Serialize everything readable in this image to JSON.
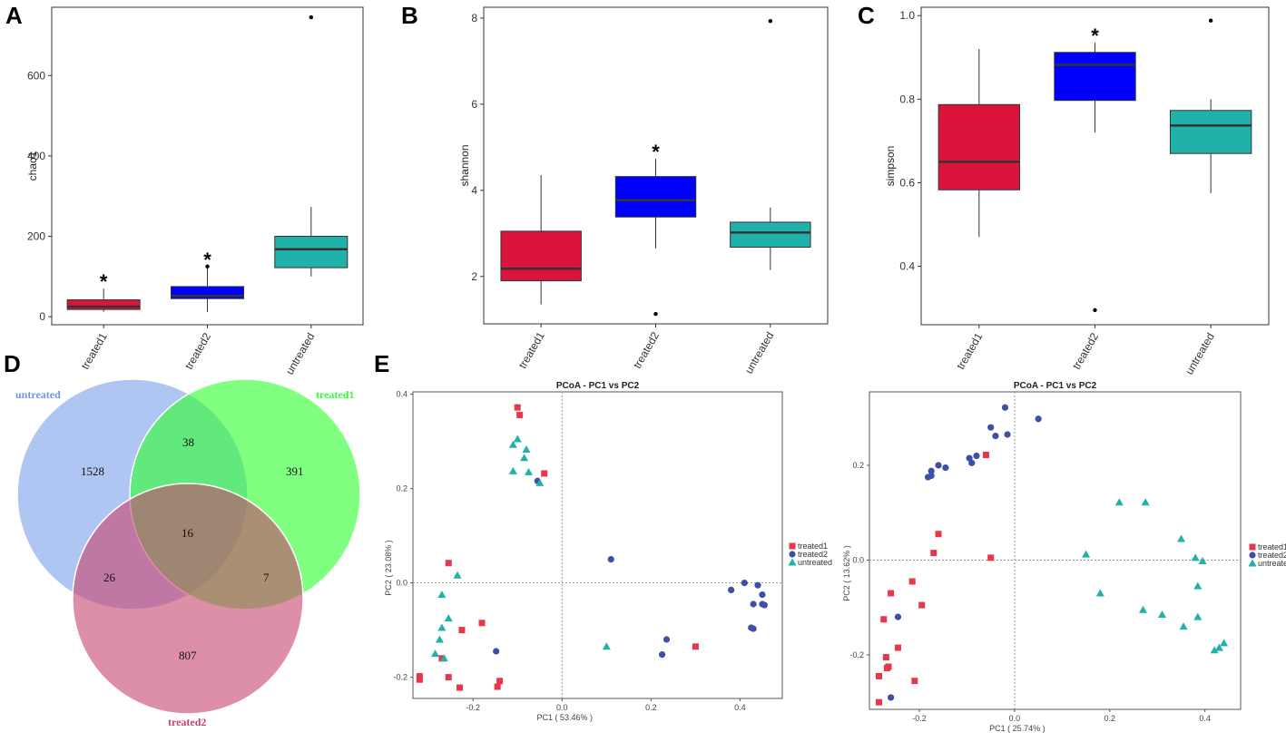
{
  "panel_letters": {
    "A": "A",
    "B": "B",
    "C": "C",
    "D": "D",
    "E": "E"
  },
  "chart_data": [
    {
      "id": "A",
      "type": "boxplot",
      "ylabel": "chao1",
      "ylim": [
        -20,
        770
      ],
      "yticks": [
        0,
        200,
        400,
        600
      ],
      "categories": [
        "treated1",
        "treated2",
        "untreated"
      ],
      "colors": [
        "#dc143c",
        "#0000ff",
        "#20b2aa"
      ],
      "boxes": [
        {
          "whisker_low": 12,
          "q1": 18,
          "median": 25,
          "q3": 42,
          "whisker_high": 70,
          "outliers": [],
          "star": "*"
        },
        {
          "whisker_low": 12,
          "q1": 45,
          "median": 52,
          "q3": 75,
          "whisker_high": 122,
          "outliers": [
            125
          ],
          "star": "*"
        },
        {
          "whisker_low": 100,
          "q1": 122,
          "median": 168,
          "q3": 200,
          "whisker_high": 273,
          "outliers": [
            745
          ],
          "star": ""
        }
      ]
    },
    {
      "id": "B",
      "type": "boxplot",
      "ylabel": "shannon",
      "ylim": [
        0.9,
        8.25
      ],
      "yticks": [
        2,
        4,
        6,
        8
      ],
      "categories": [
        "treated1",
        "treated2",
        "untreated"
      ],
      "colors": [
        "#dc143c",
        "#0000ff",
        "#20b2aa"
      ],
      "boxes": [
        {
          "whisker_low": 1.35,
          "q1": 1.9,
          "median": 2.18,
          "q3": 3.05,
          "whisker_high": 4.35,
          "outliers": [],
          "star": ""
        },
        {
          "whisker_low": 2.65,
          "q1": 3.38,
          "median": 3.77,
          "q3": 4.32,
          "whisker_high": 4.73,
          "outliers": [
            1.13
          ],
          "star": "*"
        },
        {
          "whisker_low": 2.15,
          "q1": 2.68,
          "median": 3.02,
          "q3": 3.26,
          "whisker_high": 3.6,
          "outliers": [
            7.93
          ],
          "star": ""
        }
      ]
    },
    {
      "id": "C",
      "type": "boxplot",
      "ylabel": "simpson",
      "ylim": [
        0.26,
        1.02
      ],
      "yticks": [
        0.4,
        0.6,
        0.8,
        1.0
      ],
      "ytick_labels": [
        "0.4",
        "0.6",
        "0.8",
        "1.0"
      ],
      "categories": [
        "treated1",
        "treated2",
        "untreated"
      ],
      "colors": [
        "#dc143c",
        "#0000ff",
        "#20b2aa"
      ],
      "boxes": [
        {
          "whisker_low": 0.47,
          "q1": 0.583,
          "median": 0.65,
          "q3": 0.787,
          "whisker_high": 0.92,
          "outliers": [],
          "star": ""
        },
        {
          "whisker_low": 0.72,
          "q1": 0.797,
          "median": 0.882,
          "q3": 0.912,
          "whisker_high": 0.935,
          "outliers": [
            0.295
          ],
          "star": "*"
        },
        {
          "whisker_low": 0.575,
          "q1": 0.67,
          "median": 0.737,
          "q3": 0.773,
          "whisker_high": 0.8,
          "outliers": [
            0.988
          ],
          "star": ""
        }
      ]
    },
    {
      "id": "D",
      "type": "venn",
      "sets": [
        {
          "name": "untreated",
          "color": "#6e96e8"
        },
        {
          "name": "treated1",
          "color": "#33ff33"
        },
        {
          "name": "treated2",
          "color": "#c8446e"
        }
      ],
      "counts": {
        "untreated_only": "1528",
        "treated1_only": "391",
        "treated2_only": "807",
        "untreated_treated1": "38",
        "untreated_treated2": "26",
        "treated1_treated2": "7",
        "all": "16"
      }
    },
    {
      "id": "E1",
      "type": "scatter",
      "title": "PCoA - PC1 vs PC2",
      "xlabel": "PC1 ( 53.46% )",
      "ylabel": "PC2 ( 23.08% )",
      "xlim": [
        -0.335,
        0.495
      ],
      "ylim": [
        -0.245,
        0.405
      ],
      "xticks": [
        -0.2,
        0,
        0.2,
        0.4
      ],
      "xtick_labels": [
        "-0.2",
        "0.0",
        "0.2",
        "0.4"
      ],
      "yticks": [
        -0.2,
        0,
        0.2,
        0.4
      ],
      "ytick_labels": [
        "-0.2",
        "0.0",
        "0.2",
        "0.4"
      ],
      "legend": [
        "treated1",
        "treated2",
        "untreated"
      ],
      "series": [
        {
          "name": "treated1",
          "color": "#e8364a",
          "marker": "square",
          "points": [
            [
              -0.1,
              0.372
            ],
            [
              -0.095,
              0.356
            ],
            [
              -0.04,
              0.232
            ],
            [
              -0.255,
              0.042
            ],
            [
              -0.255,
              -0.2
            ],
            [
              -0.23,
              -0.222
            ],
            [
              -0.145,
              -0.22
            ],
            [
              -0.14,
              -0.208
            ],
            [
              -0.225,
              -0.1
            ],
            [
              -0.18,
              -0.085
            ],
            [
              -0.27,
              -0.16
            ],
            [
              -0.32,
              -0.198
            ],
            [
              -0.32,
              -0.205
            ],
            [
              0.3,
              -0.135
            ]
          ]
        },
        {
          "name": "treated2",
          "color": "#3f4fa5",
          "marker": "circle",
          "points": [
            [
              -0.055,
              0.216
            ],
            [
              0.11,
              0.05
            ],
            [
              0.41,
              0.0
            ],
            [
              0.38,
              -0.015
            ],
            [
              0.44,
              -0.005
            ],
            [
              0.45,
              -0.025
            ],
            [
              0.43,
              -0.045
            ],
            [
              0.45,
              -0.045
            ],
            [
              0.455,
              -0.047
            ],
            [
              0.425,
              -0.095
            ],
            [
              0.43,
              -0.097
            ],
            [
              0.235,
              -0.12
            ],
            [
              0.225,
              -0.152
            ],
            [
              -0.148,
              -0.145
            ]
          ]
        },
        {
          "name": "untreated",
          "color": "#20b2aa",
          "marker": "triangle",
          "points": [
            [
              -0.1,
              0.305
            ],
            [
              -0.11,
              0.293
            ],
            [
              -0.08,
              0.283
            ],
            [
              -0.085,
              0.265
            ],
            [
              -0.11,
              0.237
            ],
            [
              -0.075,
              0.235
            ],
            [
              -0.05,
              0.212
            ],
            [
              -0.235,
              0.016
            ],
            [
              -0.27,
              -0.025
            ],
            [
              -0.255,
              -0.075
            ],
            [
              -0.27,
              -0.095
            ],
            [
              -0.275,
              -0.12
            ],
            [
              -0.285,
              -0.15
            ],
            [
              -0.265,
              -0.16
            ],
            [
              0.1,
              -0.135
            ]
          ]
        }
      ]
    },
    {
      "id": "E2",
      "type": "scatter",
      "title": "PCoA - PC1 vs PC2",
      "xlabel": "PC1 ( 25.74% )",
      "ylabel": "PC2 ( 13.62% )",
      "xlim": [
        -0.305,
        0.475
      ],
      "ylim": [
        -0.315,
        0.355
      ],
      "xticks": [
        -0.2,
        0,
        0.2,
        0.4
      ],
      "xtick_labels": [
        "-0.2",
        "0.0",
        "0.2",
        "0.4"
      ],
      "yticks": [
        -0.2,
        0,
        0.2
      ],
      "ytick_labels": [
        "-0.2",
        "0.0",
        "0.2"
      ],
      "legend": [
        "treated1",
        "treated2",
        "untreate"
      ],
      "series": [
        {
          "name": "treated1",
          "color": "#e8364a",
          "marker": "square",
          "points": [
            [
              -0.06,
              0.222
            ],
            [
              -0.16,
              0.055
            ],
            [
              -0.17,
              0.015
            ],
            [
              -0.05,
              0.005
            ],
            [
              -0.215,
              -0.045
            ],
            [
              -0.195,
              -0.095
            ],
            [
              -0.26,
              -0.07
            ],
            [
              -0.275,
              -0.125
            ],
            [
              -0.245,
              -0.185
            ],
            [
              -0.27,
              -0.205
            ],
            [
              -0.265,
              -0.225
            ],
            [
              -0.268,
              -0.228
            ],
            [
              -0.285,
              -0.245
            ],
            [
              -0.21,
              -0.255
            ],
            [
              -0.285,
              -0.3
            ]
          ]
        },
        {
          "name": "treated2",
          "color": "#3f4fa5",
          "marker": "circle",
          "points": [
            [
              -0.02,
              0.322
            ],
            [
              0.05,
              0.298
            ],
            [
              -0.05,
              0.28
            ],
            [
              -0.04,
              0.262
            ],
            [
              -0.015,
              0.265
            ],
            [
              -0.08,
              0.22
            ],
            [
              -0.095,
              0.215
            ],
            [
              -0.09,
              0.205
            ],
            [
              -0.16,
              0.2
            ],
            [
              -0.145,
              0.195
            ],
            [
              -0.175,
              0.188
            ],
            [
              -0.175,
              0.178
            ],
            [
              -0.182,
              0.175
            ],
            [
              -0.245,
              -0.12
            ],
            [
              -0.26,
              -0.29
            ]
          ]
        },
        {
          "name": "untreated",
          "color": "#20b2aa",
          "marker": "triangle",
          "points": [
            [
              0.22,
              0.122
            ],
            [
              0.275,
              0.122
            ],
            [
              0.35,
              0.045
            ],
            [
              0.15,
              0.012
            ],
            [
              0.38,
              0.005
            ],
            [
              0.395,
              -0.002
            ],
            [
              0.18,
              -0.07
            ],
            [
              0.385,
              -0.055
            ],
            [
              0.27,
              -0.105
            ],
            [
              0.31,
              -0.115
            ],
            [
              0.385,
              -0.12
            ],
            [
              0.355,
              -0.14
            ],
            [
              0.44,
              -0.175
            ],
            [
              0.43,
              -0.185
            ],
            [
              0.42,
              -0.19
            ]
          ]
        }
      ]
    }
  ]
}
